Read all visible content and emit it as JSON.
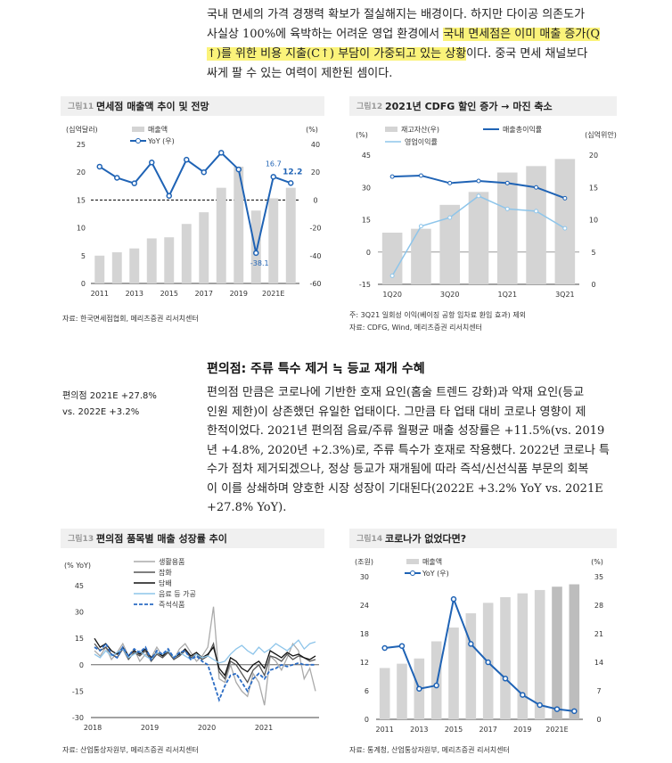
{
  "intro": {
    "line1": "국내 면세의 가격 경쟁력 확보가 절실해지는 배경이다. 하지만 다이공 의존도가",
    "line2a": "사실상 100%에 육박하는 어려운 영업 환경에서 ",
    "line2b": "국내 면세점은 이미 매출 증가(Q",
    "line3a": "↑)를 위한 비용 지출(C↑) 부담이 가중되고 있는 상황",
    "line3b": "이다. 중국 면세 채널보다",
    "line4": "싸게 팔 수 있는 여력이 제한된 셈이다."
  },
  "fig11": {
    "tag": "그림11",
    "title": "면세점 매출액 추이 및 전망",
    "source": "자료: 한국면세점협회, 메리츠증권 리서치센터",
    "chart_data": {
      "type": "bar+line",
      "left_unit": "(십억달러)",
      "right_unit": "(%)",
      "legend_bar": "매출액",
      "legend_line": "YoY (우)",
      "categories": [
        "2011",
        "2012",
        "2013",
        "2014",
        "2015",
        "2016",
        "2017",
        "2018",
        "2019",
        "2020",
        "2021E",
        "2022E"
      ],
      "x_tick_labels": [
        "2011",
        "2013",
        "2015",
        "2017",
        "2019",
        "2021E"
      ],
      "bars": [
        5.0,
        5.6,
        6.3,
        8.1,
        8.3,
        10.7,
        12.8,
        17.2,
        21.0,
        13.1,
        15.3,
        17.2
      ],
      "yoy": [
        24,
        16,
        12,
        27,
        3,
        29,
        20,
        34,
        22,
        -38.1,
        16.7,
        12.2
      ],
      "left_ticks": [
        0,
        5,
        10,
        15,
        20,
        25
      ],
      "right_ticks": [
        -60,
        -40,
        -20,
        0,
        20,
        40
      ],
      "labels": {
        "a": "16.7",
        "b": "12.2",
        "c": "-38.1"
      }
    }
  },
  "fig12": {
    "tag": "그림12",
    "title": "2021년 CDFG 할인 증가 → 마진 축소",
    "note": "주: 3Q21 일회성 이익(베이징 공항 임차료 환입 효과) 제외",
    "source": "자료: CDFG, Wind, 메리츠증권 리서치센터",
    "chart_data": {
      "type": "bar+line",
      "left_unit": "(%)",
      "right_unit": "(십억위안)",
      "legend": [
        "재고자산(우)",
        "매출총이익률",
        "영업이익률"
      ],
      "categories": [
        "1Q20",
        "2Q20",
        "3Q20",
        "4Q20",
        "1Q21",
        "2Q21",
        "3Q21"
      ],
      "x_tick_labels": [
        "1Q20",
        "3Q20",
        "1Q21",
        "3Q21"
      ],
      "inventory": [
        8.0,
        8.6,
        12.3,
        14.3,
        17.3,
        18.3,
        19.4
      ],
      "gross_margin": [
        35,
        35.5,
        32,
        33,
        32,
        30,
        25
      ],
      "op_margin": [
        -11,
        12,
        16,
        26,
        20,
        19,
        11
      ],
      "left_ticks": [
        -15,
        0,
        15,
        30,
        45
      ],
      "right_ticks": [
        0,
        5,
        10,
        15,
        20
      ]
    }
  },
  "section": {
    "heading": "편의점: 주류 특수 제거 ≒ 등교 재개 수혜",
    "side1": "편의점 2021E +27.8%",
    "side2": "vs. 2022E +3.2%",
    "lines": [
      "편의점 만큼은 코로나에 기반한 호재 요인(홈술 트렌드 강화)과 악재 요인(등교",
      "인원 제한)이 상존했던 유일한 업태이다. 그만큼 타 업태 대비 코로나 영향이 제",
      "한적이었다. 2021년 편의점 음료/주류 월평균 매출 성장률은 +11.5%(vs. 2019",
      "년 +4.8%, 2020년 +2.3%)로, 주류 특수가 호재로 작용했다. 2022년 코로나 특",
      "수가 점차 제거되겠으나, 정상 등교가 재개됨에 따라 즉석/신선식품 부문의 회복",
      "이 이를 상쇄하며 양호한 시장 성장이 기대된다(2022E +3.2% YoY vs. 2021E",
      "+27.8% YoY)."
    ]
  },
  "fig13": {
    "tag": "그림13",
    "title": "편의점 품목별 매출 성장률 추이",
    "source": "자료: 산업통상자원부, 메리츠증권 리서치센터",
    "chart_data": {
      "type": "line",
      "unit": "(% YoY)",
      "y_ticks": [
        -30,
        -15,
        0,
        15,
        30,
        45
      ],
      "x_tick_labels": [
        "2018",
        "2019",
        "2020",
        "2021"
      ],
      "x_range": [
        2018,
        2022
      ],
      "series": [
        {
          "name": "생활용품",
          "color": "#aaaaaa",
          "values": [
            8,
            5,
            10,
            3,
            7,
            12,
            5,
            9,
            2,
            6,
            4,
            10,
            5,
            8,
            3,
            9,
            12,
            7,
            2,
            5,
            10,
            33,
            -8,
            -10,
            0,
            -10,
            -15,
            -18,
            -5,
            -10,
            -23,
            5,
            2,
            -3,
            4,
            12,
            8,
            -8,
            -2,
            -15
          ]
        },
        {
          "name": "잡화",
          "color": "#555555",
          "values": [
            12,
            8,
            10,
            6,
            4,
            9,
            3,
            7,
            5,
            8,
            2,
            6,
            4,
            7,
            3,
            5,
            8,
            4,
            6,
            3,
            5,
            12,
            -4,
            -8,
            2,
            0,
            -5,
            -10,
            -3,
            0,
            -6,
            5,
            4,
            2,
            6,
            3,
            5,
            4,
            2,
            3
          ]
        },
        {
          "name": "담배",
          "color": "#111111",
          "values": [
            15,
            10,
            12,
            8,
            6,
            10,
            5,
            8,
            6,
            9,
            4,
            7,
            5,
            8,
            4,
            6,
            9,
            5,
            7,
            4,
            6,
            10,
            -2,
            -6,
            4,
            2,
            -2,
            -4,
            0,
            2,
            -2,
            8,
            6,
            4,
            7,
            5,
            6,
            4,
            3,
            5
          ]
        },
        {
          "name": "음료 등 가공",
          "color": "#8ec5ea",
          "values": [
            6,
            4,
            8,
            5,
            7,
            9,
            4,
            6,
            8,
            5,
            3,
            7,
            6,
            8,
            4,
            7,
            5,
            3,
            6,
            4,
            5,
            3,
            1,
            2,
            6,
            9,
            11,
            8,
            6,
            10,
            7,
            9,
            12,
            10,
            8,
            11,
            14,
            9,
            12,
            13
          ]
        },
        {
          "name": "즉석식품",
          "color": "#2b6cc4",
          "dash": true,
          "values": [
            10,
            8,
            12,
            6,
            4,
            10,
            5,
            9,
            7,
            10,
            3,
            8,
            6,
            9,
            4,
            7,
            8,
            3,
            5,
            2,
            0,
            -10,
            -20,
            -12,
            -6,
            -5,
            -10,
            -15,
            -8,
            -5,
            -8,
            -3,
            -2,
            0,
            -1,
            0,
            1,
            0,
            0,
            0
          ]
        }
      ]
    }
  },
  "fig14": {
    "tag": "그림14",
    "title": "코로나가 없었다면?",
    "source": "자료: 통계청, 산업통상자원부, 메리츠증권 리서치센터",
    "chart_data": {
      "type": "bar+line",
      "left_unit": "(조원)",
      "right_unit": "(%)",
      "legend_bar": "매출액",
      "legend_line": "YoY (우)",
      "categories": [
        "2011",
        "2012",
        "2013",
        "2014",
        "2015",
        "2016",
        "2017",
        "2018",
        "2019",
        "2020",
        "2021E",
        "2022E"
      ],
      "x_tick_labels": [
        "2011",
        "2013",
        "2015",
        "2017",
        "2019",
        "2021E"
      ],
      "bars": [
        10.8,
        11.7,
        12.8,
        16.4,
        19.3,
        22.3,
        24.5,
        25.7,
        26.5,
        27.2,
        27.9,
        28.4
      ],
      "yoy": [
        17.5,
        18,
        7.5,
        8.3,
        29.5,
        18.5,
        14,
        10,
        6,
        3.5,
        2.5,
        2
      ],
      "left_ticks": [
        0,
        6,
        12,
        18,
        24,
        30
      ],
      "right_ticks": [
        0,
        7,
        14,
        21,
        28,
        35
      ]
    }
  }
}
